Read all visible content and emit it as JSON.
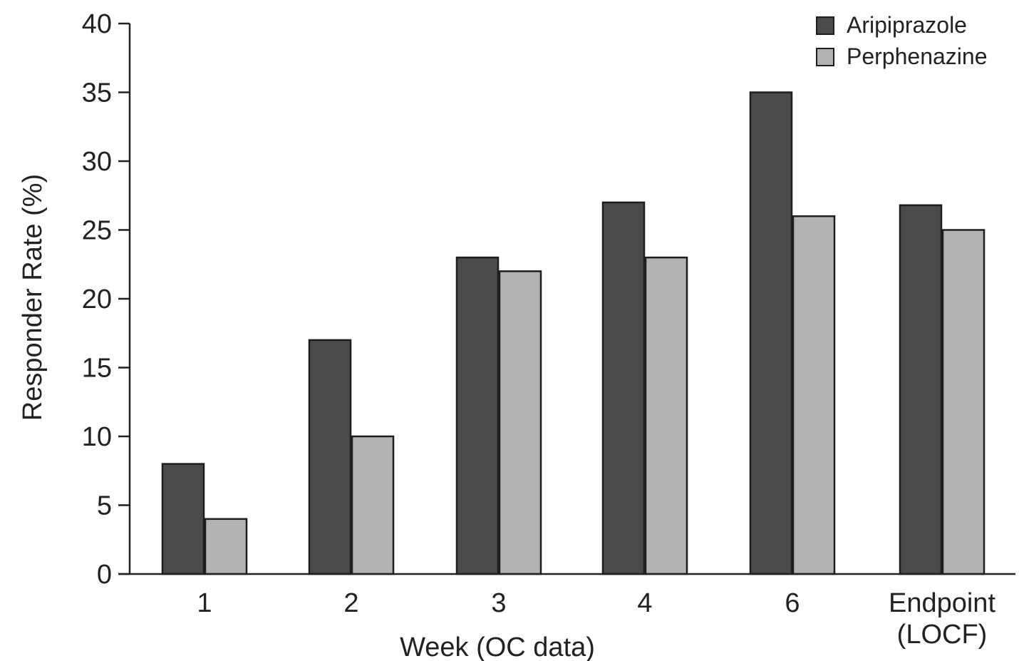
{
  "chart_data": {
    "type": "bar",
    "categories": [
      "1",
      "2",
      "3",
      "4",
      "6",
      "Endpoint\n(LOCF)"
    ],
    "series": [
      {
        "name": "Aripiprazole",
        "values": [
          8,
          17,
          23,
          27,
          35,
          26.8
        ],
        "color": "#4a4a4a"
      },
      {
        "name": "Perphenazine",
        "values": [
          4,
          10,
          22,
          23,
          26,
          25
        ],
        "color": "#b3b3b3"
      }
    ],
    "xlabel": "Week (OC data)",
    "ylabel": "Responder Rate (%)",
    "ylim": [
      0,
      40
    ],
    "yticks": [
      0,
      5,
      10,
      15,
      20,
      25,
      30,
      35,
      40
    ],
    "grid": false,
    "legend": "top-right"
  }
}
